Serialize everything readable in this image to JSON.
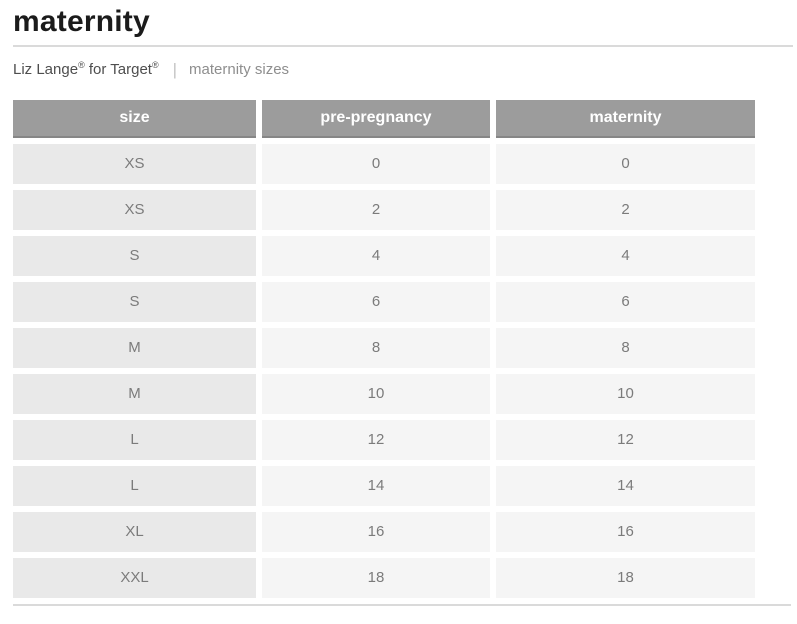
{
  "page": {
    "title": "maternity"
  },
  "subtitle": {
    "brand_name": "Liz Lange",
    "brand_reg1": "®",
    "brand_mid": " for Target",
    "brand_reg2": "®",
    "separator": "|",
    "label": "maternity sizes"
  },
  "table": {
    "columns": [
      "size",
      "pre-pregnancy",
      "maternity"
    ],
    "rows": [
      [
        "XS",
        "0",
        "0"
      ],
      [
        "XS",
        "2",
        "2"
      ],
      [
        "S",
        "4",
        "4"
      ],
      [
        "S",
        "6",
        "6"
      ],
      [
        "M",
        "8",
        "8"
      ],
      [
        "M",
        "10",
        "10"
      ],
      [
        "L",
        "12",
        "12"
      ],
      [
        "L",
        "14",
        "14"
      ],
      [
        "XL",
        "16",
        "16"
      ],
      [
        "XXL",
        "18",
        "18"
      ]
    ]
  },
  "colors": {
    "title_text": "#1b1b1b",
    "header_bg": "#9c9c9c",
    "header_text": "#ffffff",
    "size_cell_bg": "#e9e9e9",
    "value_cell_bg": "#f5f5f5",
    "cell_text": "#7b7b7b",
    "divider": "#dadada",
    "brand_text": "#4e4e4e",
    "subtitle_label_text": "#8e8e8e"
  }
}
